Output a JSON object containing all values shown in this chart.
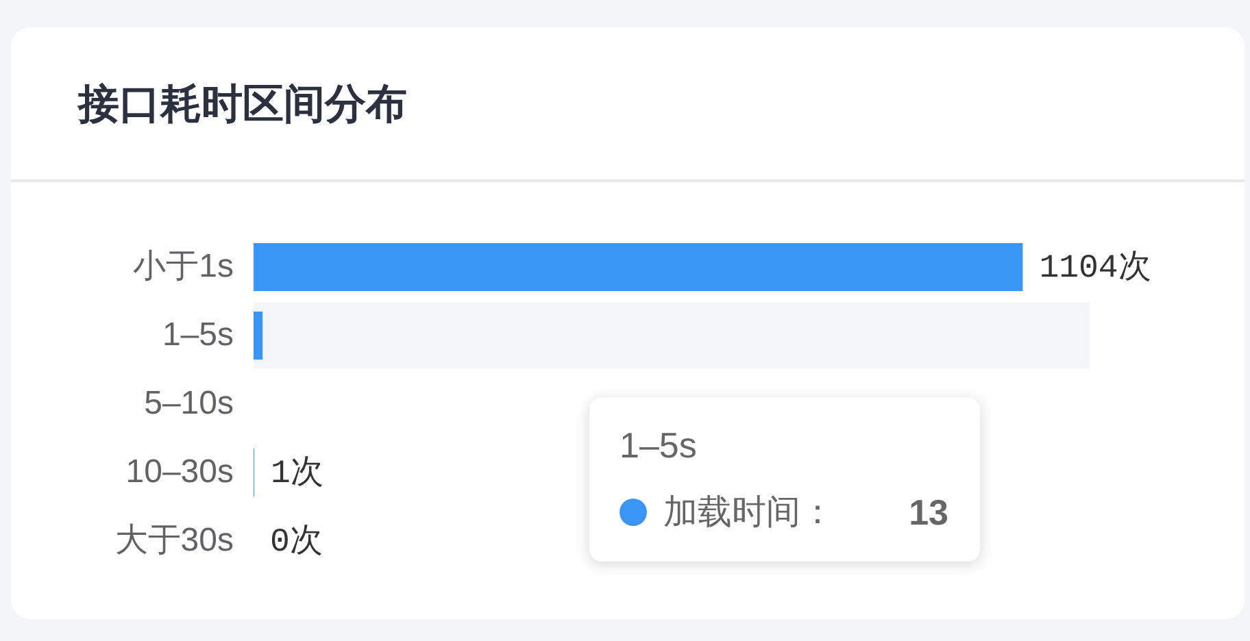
{
  "chart_data": {
    "type": "bar",
    "orientation": "horizontal",
    "title": "接口耗时区间分布",
    "categories": [
      "小于1s",
      "1–5s",
      "5–10s",
      "10–30s",
      "大于30s"
    ],
    "series": [
      {
        "color": "#3a95f7",
        "values": [
          1104,
          13,
          null,
          1,
          0
        ],
        "value_labels": [
          "1104次",
          null,
          null,
          "1次",
          "0次"
        ]
      }
    ],
    "xlim": [
      0,
      1200
    ],
    "tick_labels": "y",
    "bands": [
      {
        "axis": "y",
        "from": "1–5s",
        "to": "1–5s",
        "color": "#f4f6fa"
      }
    ],
    "annotations": [
      "1–5s",
      "加载时间：",
      "13"
    ]
  }
}
